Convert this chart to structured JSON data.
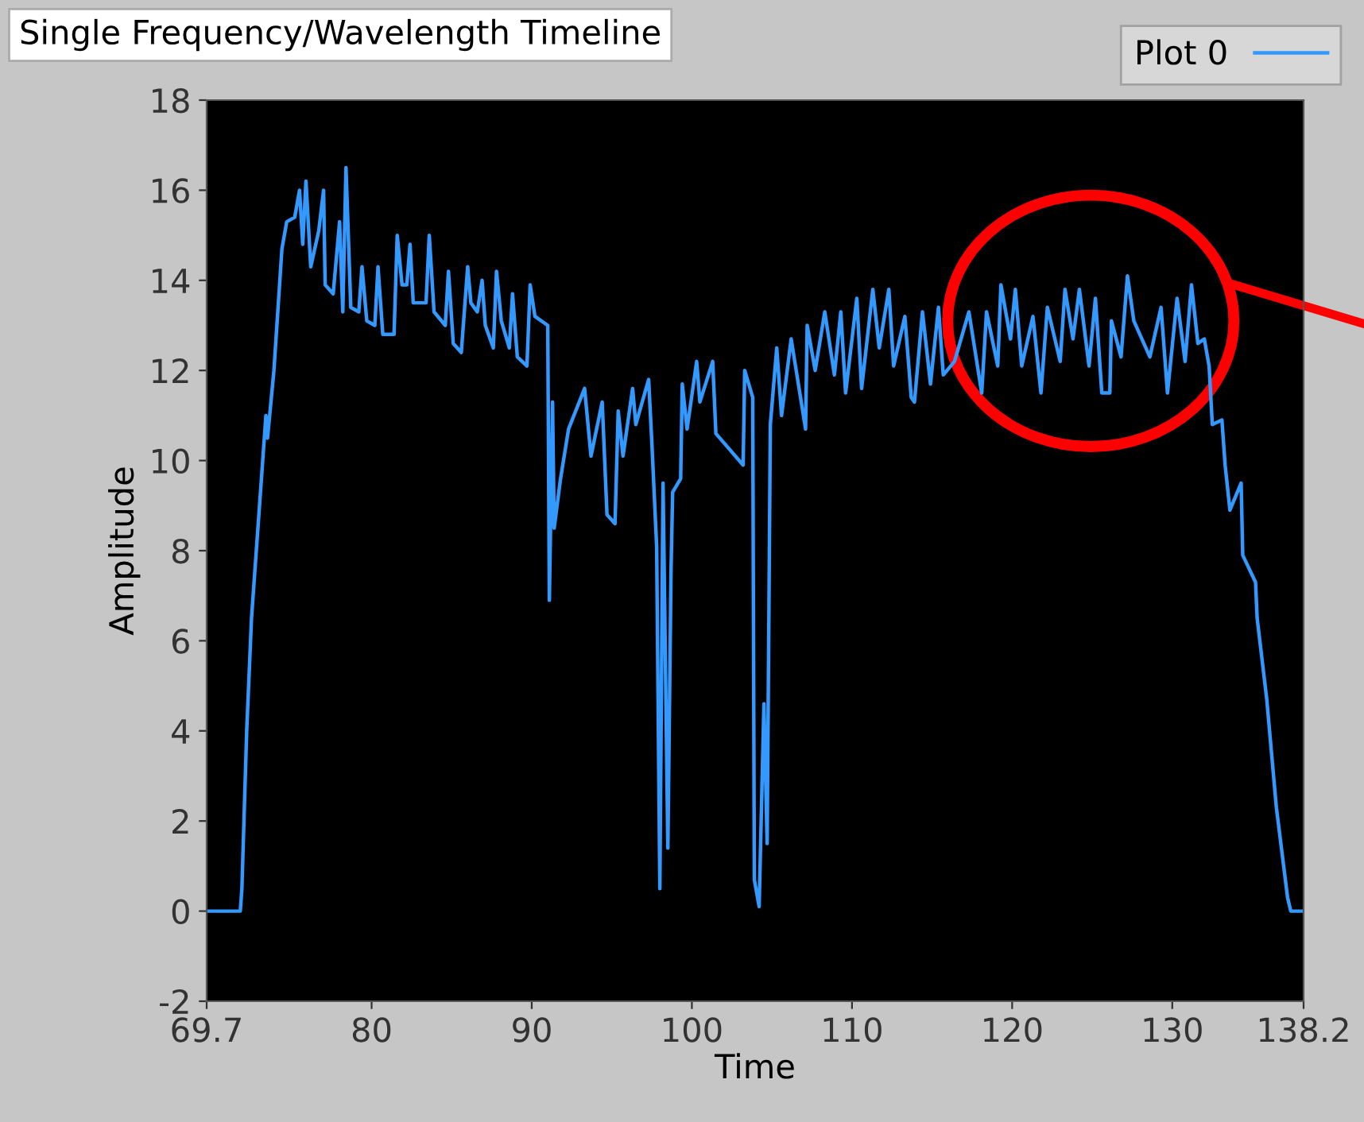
{
  "chart_data": {
    "type": "line",
    "title": "Single Frequency/Wavelength Timeline",
    "xlabel": "Time",
    "ylabel": "Amplitude",
    "xlim": [
      69.7,
      138.2
    ],
    "xticks": [
      69.7,
      80,
      90,
      100,
      110,
      120,
      130,
      138.2
    ],
    "ylim": [
      -2,
      18
    ],
    "yticks": [
      -2,
      0,
      2,
      4,
      6,
      8,
      10,
      12,
      14,
      16,
      18
    ],
    "grid": false,
    "legend": "top right",
    "marker": "none",
    "line_style": "solid",
    "series": [
      {
        "name": "Plot 0",
        "color": "#3399ff",
        "x": [
          69.7,
          71.8,
          71.9,
          72.2,
          72.5,
          73.0,
          73.4,
          73.5,
          73.9,
          74.4,
          74.7,
          75.2,
          75.5,
          75.7,
          75.9,
          76.2,
          76.7,
          77.0,
          77.1,
          77.6,
          78.0,
          78.2,
          78.4,
          78.7,
          79.2,
          79.4,
          79.7,
          80.2,
          80.4,
          80.7,
          81.4,
          81.6,
          81.9,
          82.2,
          82.4,
          82.6,
          83.4,
          83.6,
          83.9,
          84.6,
          84.8,
          85.1,
          85.6,
          86.0,
          86.2,
          86.6,
          86.9,
          87.1,
          87.6,
          87.8,
          88.1,
          88.6,
          88.8,
          89.1,
          89.7,
          89.9,
          90.2,
          91.0,
          91.1,
          91.3,
          91.4,
          91.8,
          92.3,
          93.3,
          93.7,
          94.4,
          94.7,
          95.2,
          95.4,
          95.7,
          96.3,
          96.5,
          97.3,
          97.5,
          97.8,
          98.0,
          98.2,
          98.5,
          98.7,
          98.8,
          99.3,
          99.4,
          99.7,
          100.3,
          100.5,
          101.3,
          101.5,
          103.2,
          103.3,
          103.8,
          103.9,
          104.2,
          104.5,
          104.7,
          104.9,
          105.3,
          105.6,
          106.2,
          107.1,
          107.2,
          107.7,
          108.3,
          108.9,
          109.3,
          109.6,
          110.3,
          110.6,
          111.3,
          111.7,
          112.3,
          112.6,
          113.3,
          113.7,
          113.9,
          114.4,
          114.9,
          115.4,
          115.7,
          116.4,
          117.3,
          118.1,
          118.4,
          119.1,
          119.3,
          119.9,
          120.2,
          120.6,
          121.3,
          121.8,
          122.2,
          123.0,
          123.3,
          123.8,
          124.2,
          124.8,
          125.2,
          125.6,
          126.1,
          126.2,
          126.8,
          127.2,
          127.6,
          128.6,
          129.3,
          129.7,
          130.3,
          130.8,
          131.2,
          131.6,
          132.0,
          132.3,
          132.5,
          133.1,
          133.3,
          133.6,
          134.3,
          134.4,
          135.2,
          135.3,
          135.9,
          136.5,
          137.2,
          137.4,
          138.1,
          138.2
        ],
        "values": [
          0,
          0,
          0.5,
          4,
          6.5,
          9,
          11,
          10.5,
          12,
          14.7,
          15.3,
          15.4,
          16.0,
          14.8,
          16.2,
          14.3,
          15.1,
          16.0,
          13.9,
          13.7,
          15.3,
          13.3,
          16.5,
          13.4,
          13.3,
          14.3,
          13.1,
          13.0,
          14.3,
          12.8,
          12.8,
          15.0,
          13.9,
          13.9,
          14.8,
          13.5,
          13.5,
          15.0,
          13.3,
          13.0,
          14.2,
          12.6,
          12.4,
          14.3,
          13.5,
          13.3,
          14.0,
          13.0,
          12.5,
          14.2,
          13.1,
          12.5,
          13.7,
          12.3,
          12.1,
          13.9,
          13.2,
          13.0,
          6.9,
          11.3,
          8.5,
          9.6,
          10.7,
          11.6,
          10.1,
          11.3,
          8.8,
          8.6,
          11.1,
          10.1,
          11.6,
          10.8,
          11.8,
          10.4,
          8.1,
          0.5,
          9.5,
          1.4,
          7.6,
          9.3,
          9.6,
          11.7,
          10.7,
          12.2,
          11.3,
          12.2,
          10.6,
          9.9,
          12.0,
          11.4,
          0.7,
          0.1,
          4.6,
          1.5,
          10.8,
          12.5,
          11.0,
          12.7,
          10.7,
          13.0,
          12.0,
          13.3,
          11.9,
          13.3,
          11.5,
          13.6,
          11.6,
          13.8,
          12.5,
          13.8,
          12.1,
          13.2,
          11.4,
          11.3,
          13.3,
          11.7,
          13.4,
          11.9,
          12.2,
          13.3,
          11.5,
          13.3,
          12.1,
          13.9,
          12.7,
          13.8,
          12.1,
          13.2,
          11.5,
          13.4,
          12.2,
          13.8,
          12.7,
          13.8,
          12.1,
          13.6,
          11.5,
          11.5,
          13.1,
          12.3,
          14.1,
          13.1,
          12.3,
          13.4,
          11.5,
          13.6,
          12.2,
          13.9,
          12.6,
          12.7,
          12.1,
          10.8,
          10.9,
          9.9,
          8.9,
          9.5,
          7.9,
          7.3,
          6.5,
          4.7,
          2.3,
          0.3,
          0,
          0,
          0
        ]
      }
    ]
  }
}
